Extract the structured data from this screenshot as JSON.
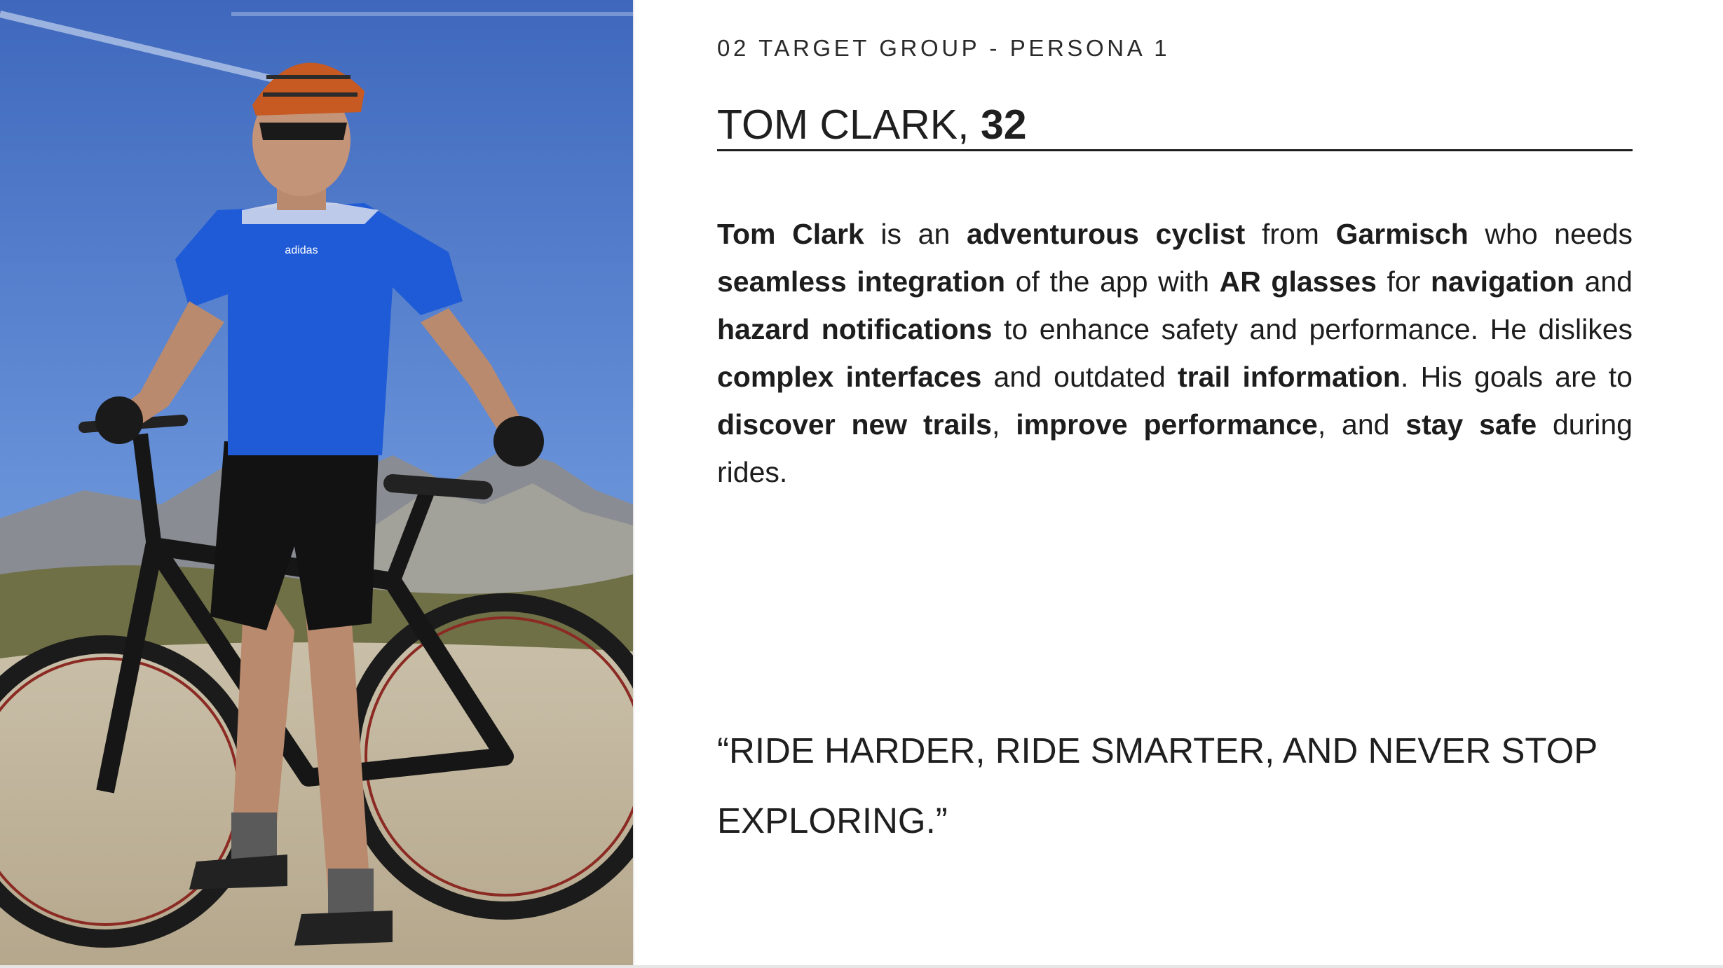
{
  "header": {
    "section_label": "02 TARGET GROUP - PERSONA 1"
  },
  "persona": {
    "name": "TOM CLARK,",
    "age": "32"
  },
  "description": {
    "segments": [
      {
        "t": "Tom Clark",
        "b": true
      },
      {
        "t": " is an ",
        "b": false
      },
      {
        "t": "adventurous cyclist",
        "b": true
      },
      {
        "t": " from ",
        "b": false
      },
      {
        "t": "Garmisch",
        "b": true
      },
      {
        "t": " who needs ",
        "b": false
      },
      {
        "t": "seamless integration",
        "b": true
      },
      {
        "t": " of the app with ",
        "b": false
      },
      {
        "t": "AR glasses",
        "b": true
      },
      {
        "t": " for ",
        "b": false
      },
      {
        "t": "navigation",
        "b": true
      },
      {
        "t": " and ",
        "b": false
      },
      {
        "t": "hazard notifications",
        "b": true
      },
      {
        "t": " to enhance safety and performance. He dislikes ",
        "b": false
      },
      {
        "t": "complex interfaces",
        "b": true
      },
      {
        "t": " and outdated ",
        "b": false
      },
      {
        "t": "trail information",
        "b": true
      },
      {
        "t": ". His goals are to ",
        "b": false
      },
      {
        "t": "discover new trails",
        "b": true
      },
      {
        "t": ", ",
        "b": false
      },
      {
        "t": "improve performance",
        "b": true
      },
      {
        "t": ", and ",
        "b": false
      },
      {
        "t": "stay safe",
        "b": true
      },
      {
        "t": " during rides.",
        "b": false
      }
    ]
  },
  "quote": {
    "text": "“RIDE HARDER, RIDE SMARTER, AND NEVER STOP EXPLORING.”"
  },
  "photo": {
    "jersey_logo": "adidas"
  },
  "colors": {
    "sky": "#4f79c6",
    "jersey": "#1f5bd6",
    "text": "#1d1d1d"
  }
}
